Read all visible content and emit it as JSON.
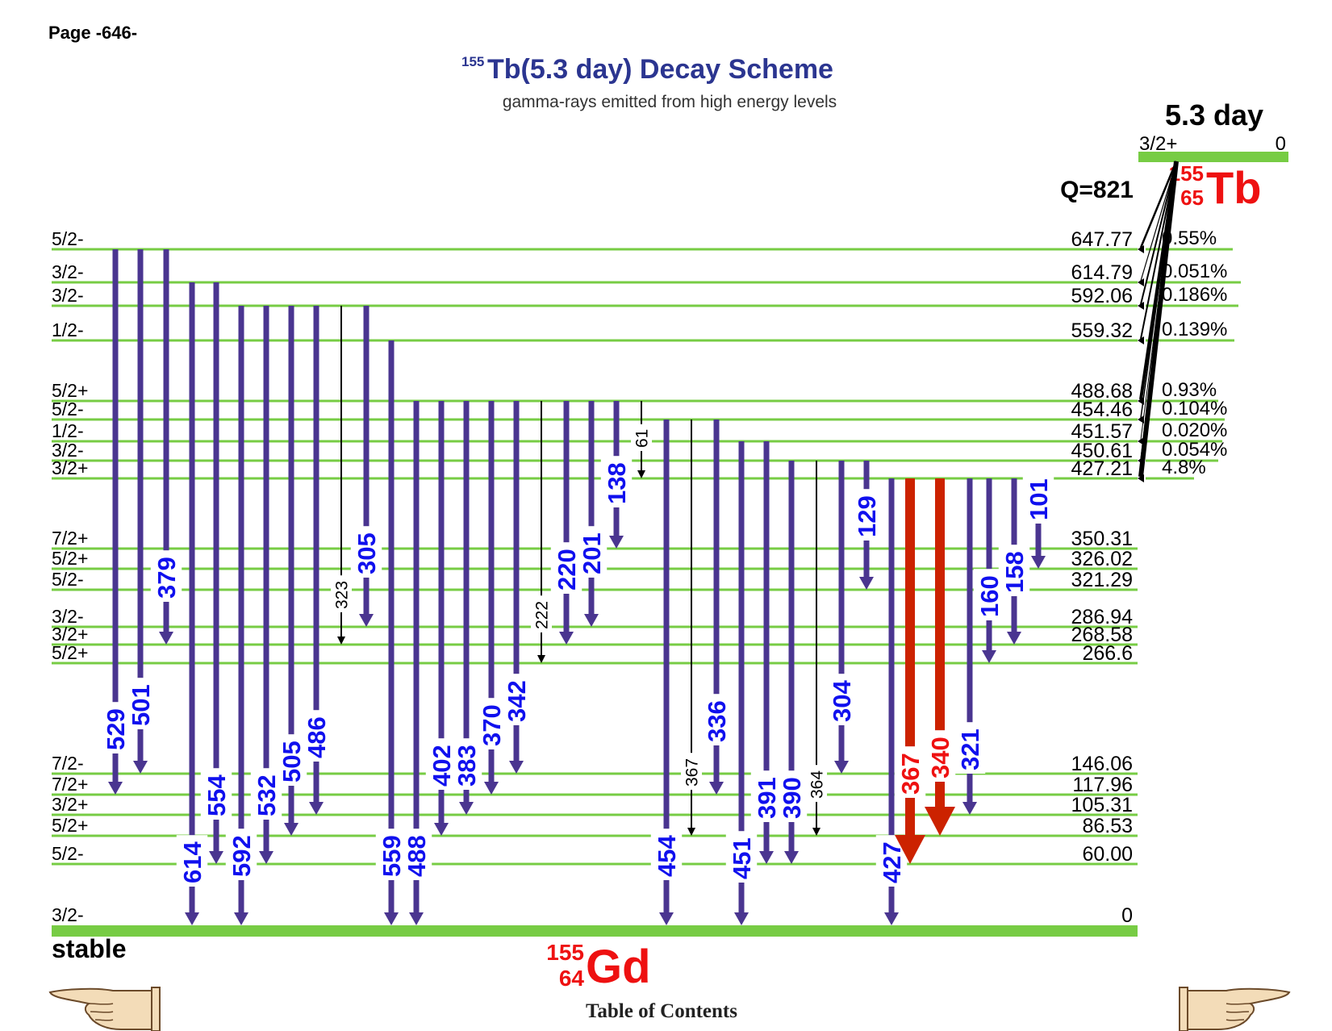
{
  "page_label": "Page -646-",
  "title": {
    "mass_number": "155",
    "text": "Tb(5.3 day) Decay Scheme",
    "subtitle": "gamma-rays emitted from high energy levels"
  },
  "parent": {
    "halflife": "5.3 day",
    "spin": "3/2+",
    "energy": "0",
    "mass_number": "155",
    "atomic_number": "65",
    "symbol": "Tb",
    "q_value": "Q=821"
  },
  "daughter": {
    "mass_number": "155",
    "atomic_number": "64",
    "symbol": "Gd",
    "status": "stable"
  },
  "levels": [
    {
      "energy": "647.77",
      "spin": "5/2-",
      "feeding": "0.55%"
    },
    {
      "energy": "614.79",
      "spin": "3/2-",
      "feeding": "0.051%"
    },
    {
      "energy": "592.06",
      "spin": "3/2-",
      "feeding": "0.186%"
    },
    {
      "energy": "559.32",
      "spin": "1/2-",
      "feeding": "0.139%"
    },
    {
      "energy": "488.68",
      "spin": "5/2+",
      "feeding": "0.93%"
    },
    {
      "energy": "454.46",
      "spin": "5/2-",
      "feeding": "0.104%"
    },
    {
      "energy": "451.57",
      "spin": "1/2-",
      "feeding": "0.020%"
    },
    {
      "energy": "450.61",
      "spin": "3/2-",
      "feeding": "0.054%"
    },
    {
      "energy": "427.21",
      "spin": "3/2+",
      "feeding": "4.8%"
    },
    {
      "energy": "350.31",
      "spin": "7/2+"
    },
    {
      "energy": "326.02",
      "spin": "5/2+"
    },
    {
      "energy": "321.29",
      "spin": "5/2-"
    },
    {
      "energy": "286.94",
      "spin": "3/2-"
    },
    {
      "energy": "268.58",
      "spin": "3/2+"
    },
    {
      "energy": "266.6",
      "spin": "5/2+"
    },
    {
      "energy": "146.06",
      "spin": "7/2-"
    },
    {
      "energy": "117.96",
      "spin": "7/2+"
    },
    {
      "energy": "105.31",
      "spin": "3/2+"
    },
    {
      "energy": "86.53",
      "spin": "5/2+"
    },
    {
      "energy": "60.00",
      "spin": "5/2-"
    },
    {
      "energy": "0",
      "spin": "3/2-"
    }
  ],
  "gammas": [
    {
      "label": "529",
      "from": "647.77",
      "to": "117.96",
      "style": "medium"
    },
    {
      "label": "501",
      "from": "647.77",
      "to": "146.06",
      "style": "medium"
    },
    {
      "label": "379",
      "from": "647.77",
      "to": "268.58",
      "style": "medium"
    },
    {
      "label": "614",
      "from": "614.79",
      "to": "0",
      "style": "medium"
    },
    {
      "label": "554",
      "from": "614.79",
      "to": "60.00",
      "style": "medium"
    },
    {
      "label": "592",
      "from": "592.06",
      "to": "0",
      "style": "medium"
    },
    {
      "label": "532",
      "from": "592.06",
      "to": "60.00",
      "style": "medium"
    },
    {
      "label": "505",
      "from": "592.06",
      "to": "86.53",
      "style": "medium"
    },
    {
      "label": "486",
      "from": "592.06",
      "to": "105.31",
      "style": "medium"
    },
    {
      "label": "323",
      "from": "592.06",
      "to": "268.58",
      "style": "weak"
    },
    {
      "label": "305",
      "from": "592.06",
      "to": "286.94",
      "style": "medium"
    },
    {
      "label": "559",
      "from": "559.32",
      "to": "0",
      "style": "medium"
    },
    {
      "label": "488",
      "from": "488.68",
      "to": "0",
      "style": "medium"
    },
    {
      "label": "402",
      "from": "488.68",
      "to": "86.53",
      "style": "medium"
    },
    {
      "label": "383",
      "from": "488.68",
      "to": "105.31",
      "style": "medium"
    },
    {
      "label": "370",
      "from": "488.68",
      "to": "117.96",
      "style": "medium"
    },
    {
      "label": "342",
      "from": "488.68",
      "to": "146.06",
      "style": "medium"
    },
    {
      "label": "222",
      "from": "488.68",
      "to": "266.6",
      "style": "weak"
    },
    {
      "label": "220",
      "from": "488.68",
      "to": "268.58",
      "style": "medium"
    },
    {
      "label": "201",
      "from": "488.68",
      "to": "286.94",
      "style": "medium"
    },
    {
      "label": "138",
      "from": "488.68",
      "to": "350.31",
      "style": "medium"
    },
    {
      "label": "61",
      "from": "488.68",
      "to": "427.21",
      "style": "weak"
    },
    {
      "label": "454",
      "from": "454.46",
      "to": "0",
      "style": "medium"
    },
    {
      "label": "367",
      "from": "454.46",
      "to": "86.53",
      "style": "weak"
    },
    {
      "label": "336",
      "from": "454.46",
      "to": "117.96",
      "style": "medium"
    },
    {
      "label": "451",
      "from": "451.57",
      "to": "0",
      "style": "medium"
    },
    {
      "label": "391",
      "from": "451.57",
      "to": "60.00",
      "style": "medium"
    },
    {
      "label": "390",
      "from": "450.61",
      "to": "60.00",
      "style": "medium"
    },
    {
      "label": "364",
      "from": "450.61",
      "to": "86.53",
      "style": "weak"
    },
    {
      "label": "304",
      "from": "450.61",
      "to": "146.06",
      "style": "medium"
    },
    {
      "label": "129",
      "from": "450.61",
      "to": "321.29",
      "style": "medium"
    },
    {
      "label": "427",
      "from": "427.21",
      "to": "0",
      "style": "medium"
    },
    {
      "label": "367",
      "from": "427.21",
      "to": "60.00",
      "style": "strong"
    },
    {
      "label": "340",
      "from": "427.21",
      "to": "86.53",
      "style": "strong"
    },
    {
      "label": "321",
      "from": "427.21",
      "to": "105.31",
      "style": "medium"
    },
    {
      "label": "160",
      "from": "427.21",
      "to": "266.6",
      "style": "medium"
    },
    {
      "label": "158",
      "from": "427.21",
      "to": "268.58",
      "style": "medium"
    },
    {
      "label": "101",
      "from": "427.21",
      "to": "326.02",
      "style": "medium"
    }
  ],
  "footer": {
    "toc_label": "Table of Contents",
    "prev_icon": "pointing-hand-left",
    "next_icon": "pointing-hand-right"
  },
  "colors": {
    "level_line": "#77cc44",
    "gamma_medium": "#4a3590",
    "gamma_strong": "#cc2200",
    "label_blue": "#1010ee",
    "label_red": "#ee1111",
    "title": "#2b3590",
    "nuclide": "#ee1111",
    "beta_line": "#000000"
  }
}
